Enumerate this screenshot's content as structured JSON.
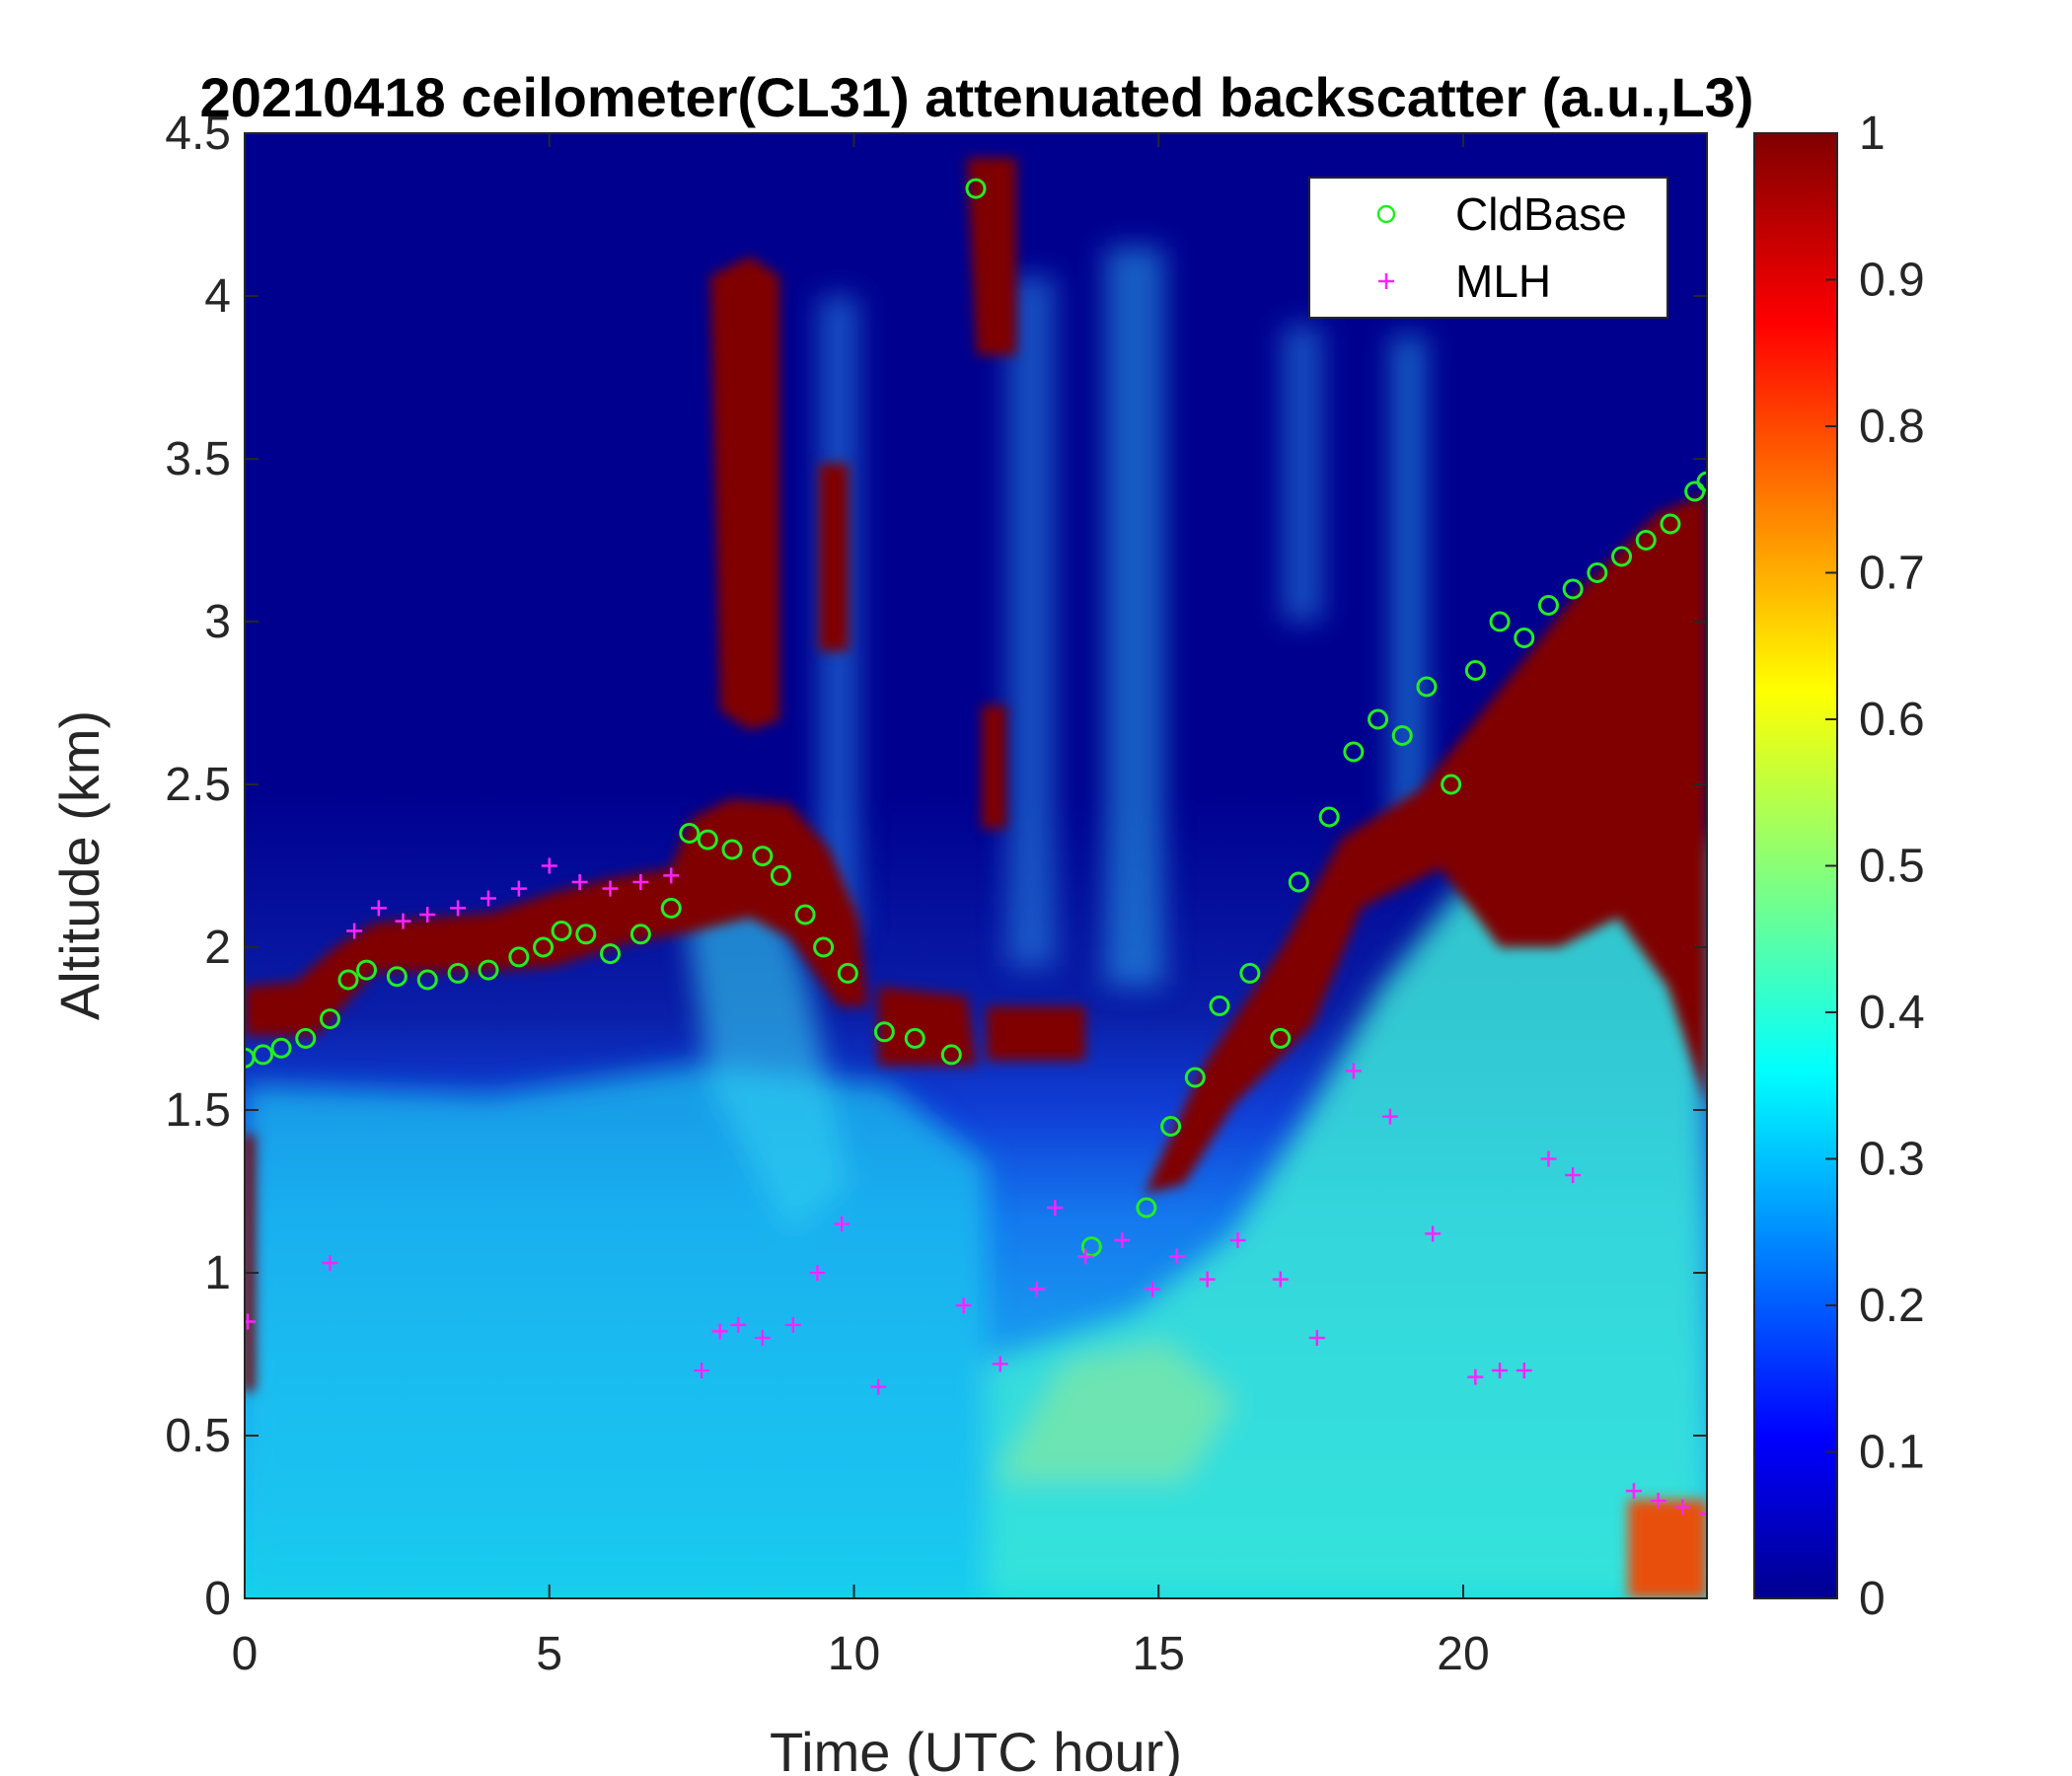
{
  "chart_data": {
    "type": "heatmap",
    "title": "20210418 ceilometer(CL31) attenuated backscatter (a.u.,L3)",
    "xlabel": "Time (UTC hour)",
    "ylabel": "Altitude (km)",
    "xlim": [
      0,
      24
    ],
    "ylim": [
      0,
      4.5
    ],
    "xticks": [
      "0",
      "5",
      "10",
      "15",
      "20"
    ],
    "yticks": [
      "0",
      "0.5",
      "1",
      "1.5",
      "2",
      "2.5",
      "3",
      "3.5",
      "4",
      "4.5"
    ],
    "colorbar": {
      "colormap": "jet",
      "range": [
        0,
        1
      ],
      "ticks": [
        "0",
        "0.1",
        "0.2",
        "0.3",
        "0.4",
        "0.5",
        "0.6",
        "0.7",
        "0.8",
        "0.9",
        "1"
      ]
    },
    "legend": {
      "placement": "top-right",
      "entries": [
        "CldBase",
        "MLH"
      ]
    },
    "colors": {
      "cldbase": "#22ee22",
      "mlh": "#ff22ff"
    },
    "series": [
      {
        "name": "CldBase",
        "marker": "circle",
        "x": [
          0.0,
          0.3,
          0.6,
          1.0,
          1.4,
          1.7,
          2.0,
          2.5,
          3.0,
          3.5,
          4.0,
          4.5,
          4.9,
          5.2,
          5.6,
          6.0,
          6.5,
          7.0,
          7.3,
          7.6,
          8.0,
          8.5,
          8.8,
          9.2,
          9.5,
          9.9,
          10.5,
          11.0,
          11.6,
          12.0,
          13.9,
          14.8,
          15.2,
          15.6,
          16.0,
          16.5,
          17.0,
          17.3,
          17.8,
          18.2,
          18.6,
          19.0,
          19.4,
          19.8,
          20.2,
          20.6,
          21.0,
          21.4,
          21.8,
          22.2,
          22.6,
          23.0,
          23.4,
          23.8,
          24.0
        ],
        "y": [
          1.66,
          1.67,
          1.69,
          1.72,
          1.78,
          1.9,
          1.93,
          1.91,
          1.9,
          1.92,
          1.93,
          1.97,
          2.0,
          2.05,
          2.04,
          1.98,
          2.04,
          2.12,
          2.35,
          2.33,
          2.3,
          2.28,
          2.22,
          2.1,
          2.0,
          1.92,
          1.74,
          1.72,
          1.67,
          4.33,
          1.08,
          1.2,
          1.45,
          1.6,
          1.82,
          1.92,
          1.72,
          2.2,
          2.4,
          2.6,
          2.7,
          2.65,
          2.8,
          2.5,
          2.85,
          3.0,
          2.95,
          3.05,
          3.1,
          3.15,
          3.2,
          3.25,
          3.3,
          3.4,
          3.43
        ]
      },
      {
        "name": "MLH",
        "marker": "plus",
        "x": [
          0.05,
          1.4,
          1.8,
          2.2,
          2.6,
          3.0,
          3.5,
          4.0,
          4.5,
          5.0,
          5.5,
          6.0,
          6.5,
          7.0,
          7.5,
          7.8,
          8.1,
          8.5,
          9.0,
          9.4,
          9.8,
          10.4,
          11.8,
          12.4,
          13.0,
          13.3,
          13.8,
          14.4,
          14.9,
          15.3,
          15.8,
          16.3,
          17.0,
          17.6,
          18.2,
          18.8,
          19.5,
          20.2,
          20.6,
          21.0,
          21.4,
          21.8,
          22.8,
          23.2,
          23.6,
          24.0
        ],
        "y": [
          0.85,
          1.03,
          2.05,
          2.12,
          2.08,
          2.1,
          2.12,
          2.15,
          2.18,
          2.25,
          2.2,
          2.18,
          2.2,
          2.22,
          0.7,
          0.82,
          0.84,
          0.8,
          0.84,
          1.0,
          1.15,
          0.65,
          0.9,
          0.72,
          0.95,
          1.2,
          1.05,
          1.1,
          0.95,
          1.05,
          0.98,
          1.1,
          0.98,
          0.8,
          1.62,
          1.48,
          1.12,
          0.68,
          0.7,
          0.7,
          1.35,
          1.3,
          0.33,
          0.3,
          0.28,
          0.26
        ]
      }
    ]
  }
}
